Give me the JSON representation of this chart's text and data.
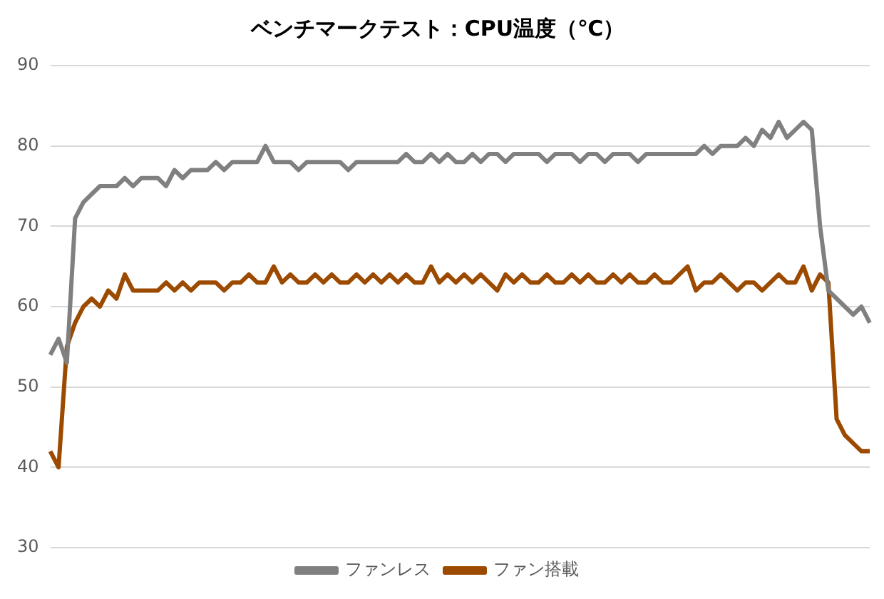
{
  "chart_data": {
    "type": "line",
    "title": "ベンチマークテスト：CPU温度（℃）",
    "categories": [
      null,
      null,
      null,
      null,
      null,
      null,
      null,
      null,
      null,
      null,
      null,
      null,
      null,
      null,
      null,
      null,
      null,
      null,
      null,
      null,
      null,
      null,
      null,
      null,
      null,
      null,
      null,
      null,
      null,
      null,
      null,
      null,
      null,
      null,
      null,
      null,
      null,
      null,
      null,
      null,
      null,
      null,
      null,
      null,
      null,
      null,
      null,
      null,
      null,
      null,
      null,
      null,
      null,
      null,
      null,
      null,
      null,
      null,
      null,
      null,
      null,
      null,
      null,
      null,
      null,
      null,
      null,
      null,
      null,
      null,
      null,
      null,
      null,
      null,
      null,
      null,
      null,
      null,
      null,
      null,
      null,
      null,
      null,
      null,
      null,
      null,
      null,
      null,
      null,
      null,
      null,
      null,
      null,
      null,
      null,
      null,
      null,
      null,
      null,
      null
    ],
    "series": [
      {
        "name": "ファンレス",
        "color": "#808080",
        "values": [
          54,
          56,
          53,
          71,
          73,
          74,
          75,
          75,
          75,
          76,
          75,
          76,
          76,
          76,
          75,
          77,
          76,
          77,
          77,
          77,
          78,
          77,
          78,
          78,
          78,
          78,
          80,
          78,
          78,
          78,
          77,
          78,
          78,
          78,
          78,
          78,
          77,
          78,
          78,
          78,
          78,
          78,
          78,
          79,
          78,
          78,
          79,
          78,
          79,
          78,
          78,
          79,
          78,
          79,
          79,
          78,
          79,
          79,
          79,
          79,
          78,
          79,
          79,
          79,
          78,
          79,
          79,
          78,
          79,
          79,
          79,
          78,
          79,
          79,
          79,
          79,
          79,
          79,
          79,
          80,
          79,
          80,
          80,
          80,
          81,
          80,
          82,
          81,
          83,
          81,
          82,
          83,
          82,
          70,
          62,
          61,
          60,
          59,
          60,
          58
        ]
      },
      {
        "name": "ファン搭載",
        "color": "#9c4a00",
        "values": [
          42,
          40,
          55,
          58,
          60,
          61,
          60,
          62,
          61,
          64,
          62,
          62,
          62,
          62,
          63,
          62,
          63,
          62,
          63,
          63,
          63,
          62,
          63,
          63,
          64,
          63,
          63,
          65,
          63,
          64,
          63,
          63,
          64,
          63,
          64,
          63,
          63,
          64,
          63,
          64,
          63,
          64,
          63,
          64,
          63,
          63,
          65,
          63,
          64,
          63,
          64,
          63,
          64,
          63,
          62,
          64,
          63,
          64,
          63,
          63,
          64,
          63,
          63,
          64,
          63,
          64,
          63,
          63,
          64,
          63,
          64,
          63,
          63,
          64,
          63,
          63,
          64,
          65,
          62,
          63,
          63,
          64,
          63,
          62,
          63,
          63,
          62,
          63,
          64,
          63,
          63,
          65,
          62,
          64,
          63,
          46,
          44,
          43,
          42,
          42
        ]
      }
    ],
    "ylim": [
      30,
      90
    ],
    "yticks": [
      30,
      40,
      50,
      60,
      70,
      80,
      90
    ],
    "grid": "y",
    "legend": "bottom",
    "marker": "none",
    "line_style": "solid",
    "tick_labels": "y"
  }
}
